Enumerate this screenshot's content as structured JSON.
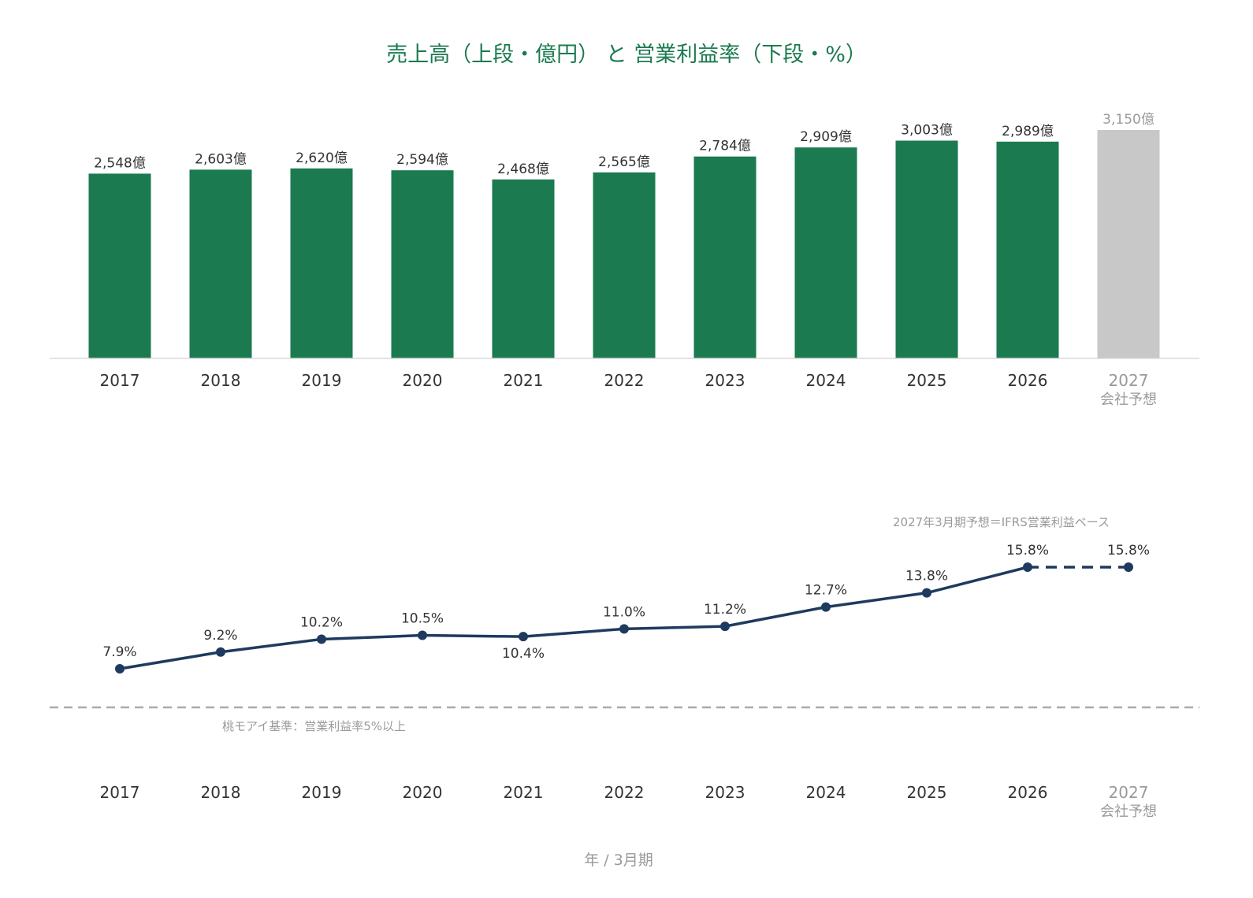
{
  "chart_data": [
    {
      "type": "bar",
      "title": "売上高（上段・億円） と 営業利益率（下段・%）",
      "categories": [
        "2017",
        "2018",
        "2019",
        "2020",
        "2021",
        "2022",
        "2023",
        "2024",
        "2025",
        "2026",
        "2027"
      ],
      "category_sublabels": [
        "",
        "",
        "",
        "",
        "",
        "",
        "",
        "",
        "",
        "",
        "会社予想"
      ],
      "values": [
        2548,
        2603,
        2620,
        2594,
        2468,
        2565,
        2784,
        2909,
        3003,
        2989,
        3150
      ],
      "data_labels": [
        "2,548億",
        "2,603億",
        "2,620億",
        "2,594億",
        "2,468億",
        "2,565億",
        "2,784億",
        "2,909億",
        "3,003億",
        "2,989億",
        "3,150億"
      ],
      "forecast_index": 10,
      "ylim": [
        0,
        3150
      ],
      "colors": {
        "actual": "#1b7a4f",
        "forecast": "#c8c8c8"
      }
    },
    {
      "type": "line",
      "categories": [
        "2017",
        "2018",
        "2019",
        "2020",
        "2021",
        "2022",
        "2023",
        "2024",
        "2025",
        "2026",
        "2027"
      ],
      "category_sublabels": [
        "",
        "",
        "",
        "",
        "",
        "",
        "",
        "",
        "",
        "",
        "会社予想"
      ],
      "values": [
        7.9,
        9.2,
        10.2,
        10.5,
        10.4,
        11.0,
        11.2,
        12.7,
        13.8,
        15.8,
        15.8
      ],
      "data_labels": [
        "7.9%",
        "9.2%",
        "10.2%",
        "10.5%",
        "10.4%",
        "11.0%",
        "11.2%",
        "12.7%",
        "13.8%",
        "15.8%",
        "15.8%"
      ],
      "forecast_index": 10,
      "forecast_note": "2027年3月期予想＝IFRS営業利益ベース",
      "reference_line": {
        "value": 5,
        "label": "桃モアイ基準：営業利益率5%以上"
      },
      "xlabel": "年 / 3月期",
      "colors": {
        "line": "#1f3a5f",
        "reference": "#aaaaaa"
      }
    }
  ]
}
